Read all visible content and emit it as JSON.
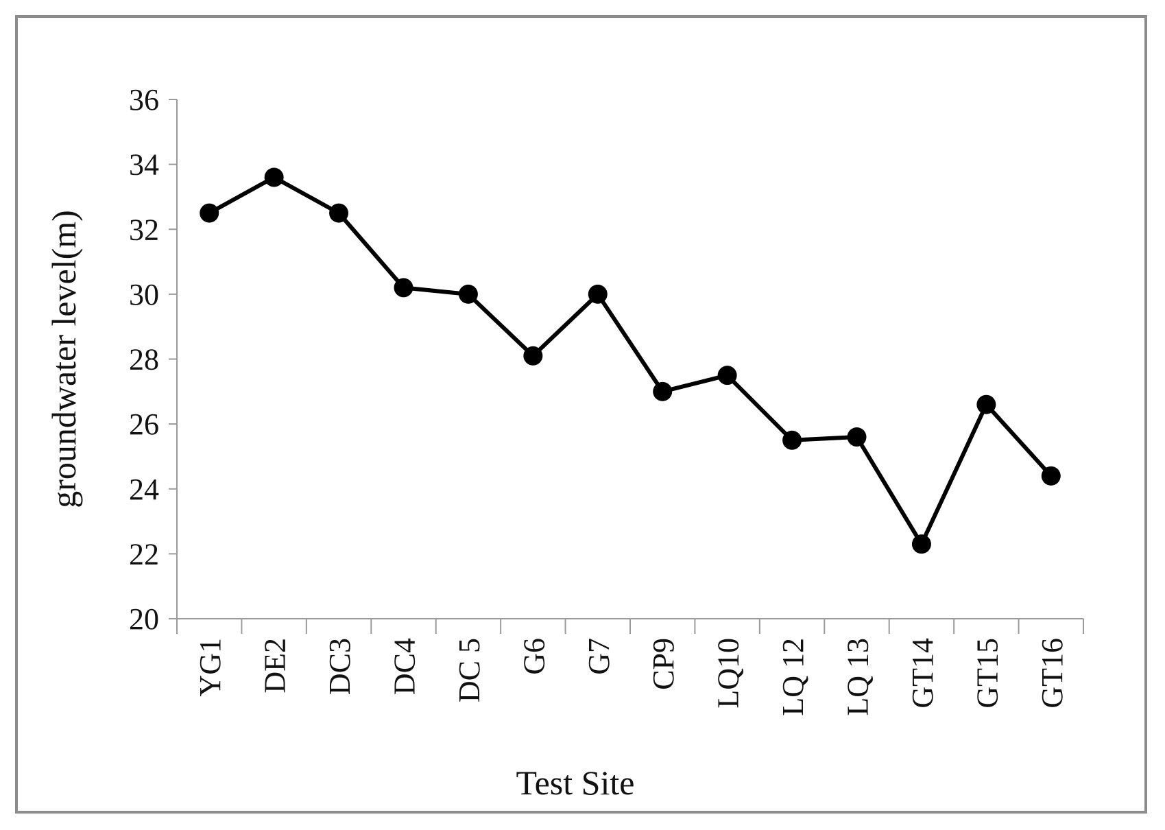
{
  "chart_data": {
    "type": "line",
    "title": "",
    "xlabel": "Test Site",
    "ylabel": "groundwater level(m)",
    "categories": [
      "YG1",
      "DE2",
      "DC3",
      "DC4",
      "DC 5",
      "G6",
      "G7",
      "CP9",
      "LQ10",
      "LQ 12",
      "LQ 13",
      "GT14",
      "GT15",
      "GT16"
    ],
    "values": [
      32.5,
      33.6,
      32.5,
      30.2,
      30.0,
      28.1,
      30.0,
      27.0,
      27.5,
      25.5,
      25.6,
      22.3,
      26.6,
      24.4
    ],
    "ylim": [
      20,
      36
    ],
    "yticks": [
      20,
      22,
      24,
      26,
      28,
      30,
      32,
      34,
      36
    ],
    "grid": false,
    "legend": "none",
    "colors": {
      "series": "#000000",
      "axis": "#9a9a9a",
      "frame": "#8c8c8c"
    }
  }
}
